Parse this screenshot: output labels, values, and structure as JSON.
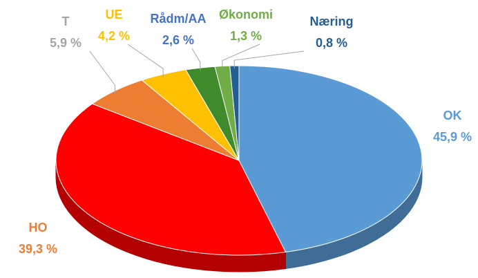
{
  "chart_data": {
    "type": "pie",
    "categories": [
      "OK",
      "HO",
      "T",
      "UE",
      "Rådm/AA",
      "Økonomi",
      "Næring"
    ],
    "values": [
      45.9,
      39.3,
      5.9,
      4.2,
      2.6,
      1.3,
      0.8
    ],
    "value_labels": [
      "45,9 %",
      "39,3 %",
      "5,9 %",
      "4,2 %",
      "2,6 %",
      "1,3 %",
      "0,8 %"
    ],
    "colors": [
      "#5b9bd5",
      "#ff0000",
      "#ed7d31",
      "#ffc000",
      "#3f8a2a",
      "#70ad47",
      "#255e91"
    ],
    "label_colors": [
      "#5b9bd5",
      "#ed7d31",
      "#a5a5a5",
      "#ffc000",
      "#4472c4",
      "#70ad47",
      "#255e91"
    ]
  }
}
